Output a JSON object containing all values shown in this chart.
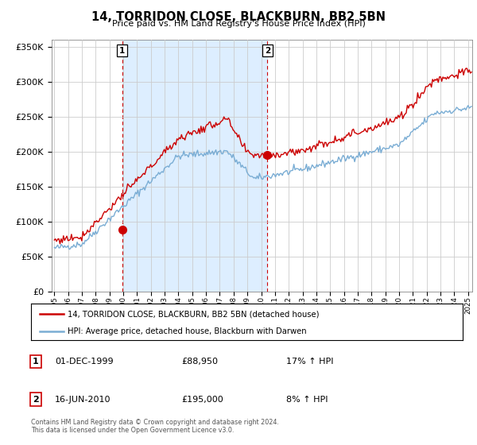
{
  "title": "14, TORRIDON CLOSE, BLACKBURN, BB2 5BN",
  "subtitle": "Price paid vs. HM Land Registry's House Price Index (HPI)",
  "ylim": [
    0,
    360000
  ],
  "xlim_start": 1994.8,
  "xlim_end": 2025.3,
  "legend_line1": "14, TORRIDON CLOSE, BLACKBURN, BB2 5BN (detached house)",
  "legend_line2": "HPI: Average price, detached house, Blackburn with Darwen",
  "table_rows": [
    {
      "num": "1",
      "date": "01-DEC-1999",
      "price": "£88,950",
      "hpi": "17% ↑ HPI"
    },
    {
      "num": "2",
      "date": "16-JUN-2010",
      "price": "£195,000",
      "hpi": "8% ↑ HPI"
    }
  ],
  "footnote": "Contains HM Land Registry data © Crown copyright and database right 2024.\nThis data is licensed under the Open Government Licence v3.0.",
  "sale1_x": 1999.917,
  "sale1_y": 88950,
  "sale2_x": 2010.458,
  "sale2_y": 195000,
  "hpi_color": "#7aadd4",
  "price_color": "#cc0000",
  "shade_color": "#ddeeff",
  "background_color": "#ffffff",
  "grid_color": "#cccccc"
}
